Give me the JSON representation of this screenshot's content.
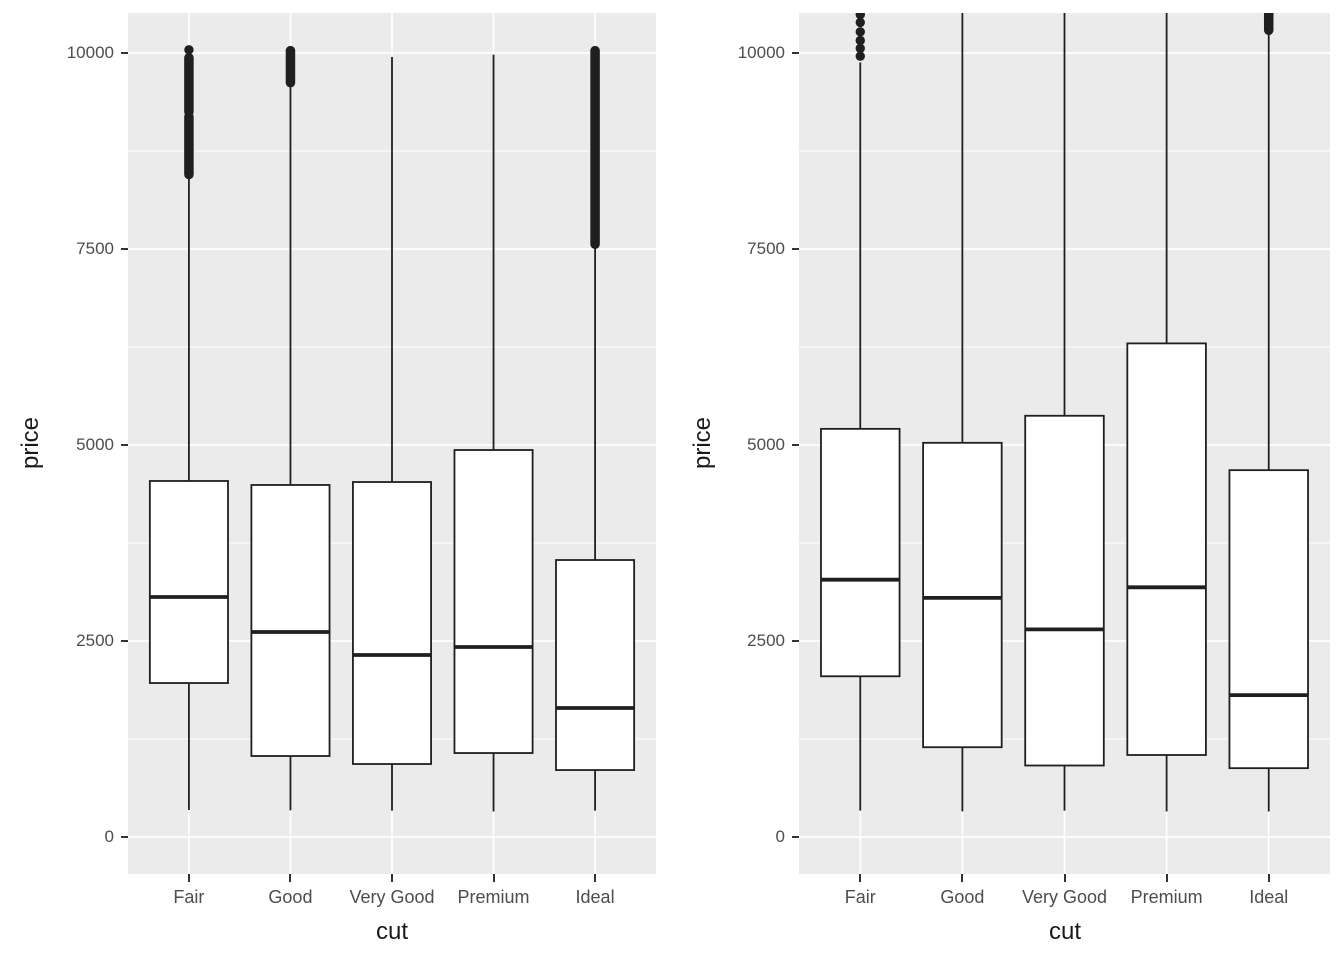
{
  "figure": {
    "background": "#FFFFFF",
    "panel_background": "#EBEBEB",
    "grid_color": "#FFFFFF",
    "box_stroke": "#1F1F1F",
    "box_fill": "#FFFFFF",
    "tick_color": "#333333",
    "tick_label_color": "#4D4D4D",
    "axis_title_color": "#1A1A1A"
  },
  "axes": {
    "y_title": "price",
    "x_title": "cut",
    "categories": [
      "Fair",
      "Good",
      "Very Good",
      "Premium",
      "Ideal"
    ],
    "y_tick_labels": [
      "0",
      "2500",
      "5000",
      "7500",
      "10000"
    ]
  },
  "chart_data": [
    {
      "id": "left-boxplot",
      "type": "boxplot",
      "title": "",
      "xlabel": "cut",
      "ylabel": "price",
      "categories": [
        "Fair",
        "Good",
        "Very Good",
        "Premium",
        "Ideal"
      ],
      "y_ticks": [
        0,
        2500,
        5000,
        7500,
        10000
      ],
      "y_minor_ticks": [
        1250,
        3750,
        6250,
        8750
      ],
      "ylim": [
        -470,
        10510
      ],
      "grid": true,
      "boxes": [
        {
          "category": "Fair",
          "whisker_low": 344,
          "q1": 1964,
          "median": 3061,
          "q3": 4541,
          "whisker_high": 8420,
          "whisker_high_clipped": false,
          "outlier_segments": [
            [
              8450,
              9190
            ],
            [
              9250,
              9940
            ]
          ],
          "outlier_dots": [
            10040
          ]
        },
        {
          "category": "Good",
          "whisker_low": 340,
          "q1": 1033,
          "median": 2615,
          "q3": 4490,
          "whisker_high": 9600,
          "whisker_high_clipped": false,
          "outlier_segments": [
            [
              9620,
              10030
            ]
          ],
          "outlier_dots": []
        },
        {
          "category": "Very Good",
          "whisker_low": 336,
          "q1": 931,
          "median": 2321,
          "q3": 4528,
          "whisker_high": 9950,
          "whisker_high_clipped": false,
          "outlier_segments": [],
          "outlier_dots": []
        },
        {
          "category": "Premium",
          "whisker_low": 326,
          "q1": 1071,
          "median": 2423,
          "q3": 4936,
          "whisker_high": 9980,
          "whisker_high_clipped": false,
          "outlier_segments": [],
          "outlier_dots": []
        },
        {
          "category": "Ideal",
          "whisker_low": 336,
          "q1": 854,
          "median": 1645,
          "q3": 3533,
          "whisker_high": 7550,
          "whisker_high_clipped": false,
          "outlier_segments": [
            [
              7560,
              10030
            ]
          ],
          "outlier_dots": []
        }
      ]
    },
    {
      "id": "right-boxplot",
      "type": "boxplot",
      "title": "",
      "xlabel": "cut",
      "ylabel": "price",
      "categories": [
        "Fair",
        "Good",
        "Very Good",
        "Premium",
        "Ideal"
      ],
      "y_ticks": [
        0,
        2500,
        5000,
        7500,
        10000
      ],
      "y_minor_ticks": [
        1250,
        3750,
        6250,
        8750
      ],
      "ylim": [
        -470,
        10510
      ],
      "grid": true,
      "boxes": [
        {
          "category": "Fair",
          "whisker_low": 337,
          "q1": 2050,
          "median": 3282,
          "q3": 5206,
          "whisker_high": 9880,
          "whisker_high_clipped": false,
          "outlier_segments": [],
          "outlier_dots": [
            9960,
            10060,
            10160,
            10270,
            10390,
            10490
          ]
        },
        {
          "category": "Good",
          "whisker_low": 327,
          "q1": 1145,
          "median": 3050,
          "q3": 5028,
          "whisker_high": null,
          "whisker_high_clipped": true,
          "outlier_segments": [],
          "outlier_dots": []
        },
        {
          "category": "Very Good",
          "whisker_low": 336,
          "q1": 912,
          "median": 2648,
          "q3": 5373,
          "whisker_high": null,
          "whisker_high_clipped": true,
          "outlier_segments": [],
          "outlier_dots": []
        },
        {
          "category": "Premium",
          "whisker_low": 326,
          "q1": 1046,
          "median": 3185,
          "q3": 6296,
          "whisker_high": null,
          "whisker_high_clipped": true,
          "outlier_segments": [],
          "outlier_dots": []
        },
        {
          "category": "Ideal",
          "whisker_low": 326,
          "q1": 878,
          "median": 1810,
          "q3": 4679,
          "whisker_high": 10372,
          "whisker_high_clipped": false,
          "outlier_segments": [
            [
              10290,
              10540
            ]
          ],
          "outlier_dots": []
        }
      ]
    }
  ],
  "layout_note": "two ggplot2-style box plots of price by cut, gray panels, white gridlines"
}
